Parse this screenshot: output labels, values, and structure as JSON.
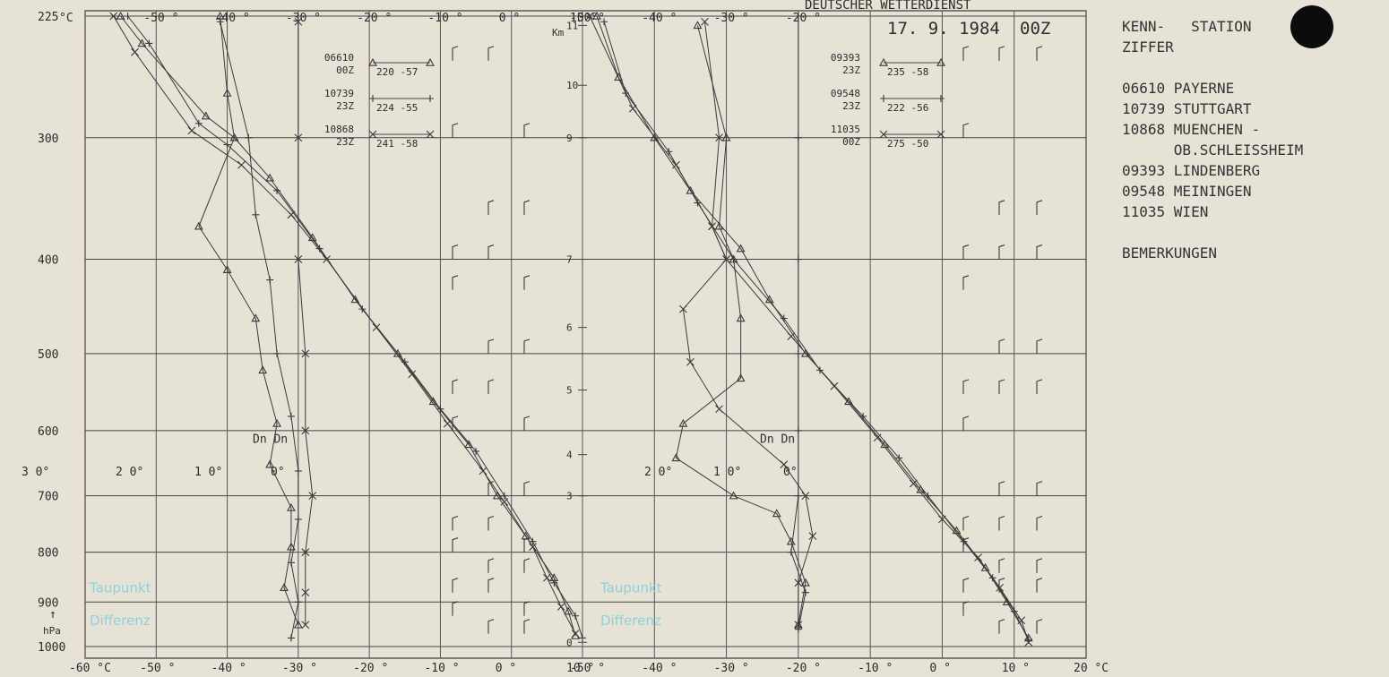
{
  "header": {
    "service": "DEUTSCHER WETTERDIENST",
    "date": "17. 9. 1984",
    "time": "00Z"
  },
  "side_panel": {
    "kenn_label": "KENN-   STATION",
    "ziffer_label": "ZIFFER",
    "stations": [
      {
        "id": "06610",
        "name": "PAYERNE"
      },
      {
        "id": "10739",
        "name": "STUTTGART"
      },
      {
        "id": "10868",
        "name": "MUENCHEN -"
      },
      {
        "id": "",
        "name": "OB.SCHLEISSHEIM"
      },
      {
        "id": "09393",
        "name": "LINDENBERG"
      },
      {
        "id": "09548",
        "name": "MEININGEN"
      },
      {
        "id": "11035",
        "name": "WIEN"
      }
    ],
    "remarks_label": "BEMERKUNGEN"
  },
  "chart_data": [
    {
      "type": "line",
      "panel": "left",
      "xlabel": "°C",
      "ylabel": "hPa",
      "xlim": [
        -60,
        10
      ],
      "x_ticks": [
        "-60 °C",
        "-50 °",
        "-40 °",
        "-30 °",
        "-20 °",
        "-10 °",
        "0 °",
        "10 °"
      ],
      "y_ticks": [
        "225",
        "300",
        "400",
        "500",
        "600",
        "700",
        "800",
        "900",
        "1000"
      ],
      "dew_diff_ticks": [
        "3 0°",
        "2 0°",
        "1 0°",
        "0°"
      ],
      "dew_diff_label": "Dn",
      "annotation": [
        "Taupunkt",
        "Differenz"
      ],
      "tropopause": [
        {
          "station": "06610",
          "time": "00Z",
          "pressure": 220,
          "temp": -57
        },
        {
          "station": "10739",
          "time": "23Z",
          "pressure": 224,
          "temp": -55
        },
        {
          "station": "10868",
          "time": "23Z",
          "pressure": 241,
          "temp": -58
        }
      ],
      "series": [
        {
          "marker": "triangle",
          "points": [
            [
              -55,
              225
            ],
            [
              -52,
              240
            ],
            [
              -43,
              285
            ],
            [
              -39,
              300
            ],
            [
              -34,
              330
            ],
            [
              -28,
              380
            ],
            [
              -22,
              440
            ],
            [
              -16,
              500
            ],
            [
              -11,
              560
            ],
            [
              -6,
              620
            ],
            [
              -2,
              700
            ],
            [
              2,
              770
            ],
            [
              6,
              850
            ],
            [
              8,
              920
            ],
            [
              9,
              975
            ]
          ]
        },
        {
          "marker": "plus",
          "points": [
            [
              -54,
              225
            ],
            [
              -51,
              240
            ],
            [
              -44,
              290
            ],
            [
              -40,
              305
            ],
            [
              -33,
              340
            ],
            [
              -27,
              390
            ],
            [
              -21,
              450
            ],
            [
              -15,
              510
            ],
            [
              -10,
              570
            ],
            [
              -5,
              630
            ],
            [
              -1,
              700
            ],
            [
              3,
              780
            ],
            [
              6,
              860
            ],
            [
              9,
              930
            ],
            [
              10,
              980
            ]
          ]
        },
        {
          "marker": "cross",
          "points": [
            [
              -56,
              225
            ],
            [
              -53,
              245
            ],
            [
              -45,
              295
            ],
            [
              -38,
              320
            ],
            [
              -31,
              360
            ],
            [
              -26,
              400
            ],
            [
              -19,
              470
            ],
            [
              -14,
              525
            ],
            [
              -9,
              590
            ],
            [
              -4,
              660
            ],
            [
              -1,
              710
            ],
            [
              3,
              790
            ],
            [
              5,
              850
            ],
            [
              7,
              910
            ],
            [
              9,
              970
            ]
          ]
        },
        {
          "marker": "triangle",
          "dewdiff": true,
          "points": [
            [
              -41,
              225
            ],
            [
              -40,
              270
            ],
            [
              -39,
              300
            ],
            [
              -44,
              370
            ],
            [
              -40,
              410
            ],
            [
              -36,
              460
            ],
            [
              -35,
              520
            ],
            [
              -33,
              590
            ],
            [
              -34,
              650
            ],
            [
              -31,
              720
            ],
            [
              -31,
              790
            ],
            [
              -32,
              870
            ],
            [
              -30,
              950
            ]
          ]
        },
        {
          "marker": "plus",
          "dewdiff": true,
          "points": [
            [
              -41,
              228
            ],
            [
              -37,
              300
            ],
            [
              -36,
              360
            ],
            [
              -34,
              420
            ],
            [
              -33,
              500
            ],
            [
              -31,
              580
            ],
            [
              -30,
              660
            ],
            [
              -30,
              740
            ],
            [
              -31,
              820
            ],
            [
              -30,
              900
            ],
            [
              -31,
              980
            ]
          ]
        },
        {
          "marker": "cross",
          "dewdiff": true,
          "points": [
            [
              -30,
              228
            ],
            [
              -30,
              300
            ],
            [
              -30,
              400
            ],
            [
              -29,
              500
            ],
            [
              -29,
              600
            ],
            [
              -28,
              700
            ],
            [
              -29,
              800
            ],
            [
              -29,
              880
            ],
            [
              -29,
              950
            ]
          ]
        }
      ]
    },
    {
      "type": "line",
      "panel": "right",
      "xlabel": "°C",
      "xlim": [
        -50,
        20
      ],
      "x_ticks": [
        "-50 °",
        "-40 °",
        "-30 °",
        "-20 °",
        "-10 °",
        "0 °",
        "10 °",
        "20 °C"
      ],
      "height_scale": {
        "label": "Km",
        "ticks": [
          "11",
          "10",
          "9",
          "7",
          "6",
          "5",
          "4",
          "3",
          "0"
        ]
      },
      "dew_diff_ticks": [
        "2 0°",
        "1 0°",
        "0°"
      ],
      "dew_diff_label": "Dn",
      "annotation": [
        "Taupunkt",
        "Differenz"
      ],
      "tropopause": [
        {
          "station": "09393",
          "time": "23Z",
          "pressure": 235,
          "temp": -58
        },
        {
          "station": "09548",
          "time": "23Z",
          "pressure": 222,
          "temp": -56
        },
        {
          "station": "11035",
          "time": "00Z",
          "pressure": 275,
          "temp": -50
        }
      ],
      "series": [
        {
          "marker": "triangle",
          "points": [
            [
              -48,
              225
            ],
            [
              -45,
              260
            ],
            [
              -40,
              300
            ],
            [
              -35,
              340
            ],
            [
              -28,
              390
            ],
            [
              -24,
              440
            ],
            [
              -19,
              500
            ],
            [
              -13,
              560
            ],
            [
              -8,
              620
            ],
            [
              -3,
              690
            ],
            [
              2,
              760
            ],
            [
              6,
              830
            ],
            [
              9,
              900
            ],
            [
              12,
              980
            ]
          ]
        },
        {
          "marker": "plus",
          "points": [
            [
              -47,
              228
            ],
            [
              -44,
              270
            ],
            [
              -38,
              310
            ],
            [
              -34,
              350
            ],
            [
              -29,
              400
            ],
            [
              -22,
              460
            ],
            [
              -17,
              520
            ],
            [
              -11,
              580
            ],
            [
              -6,
              640
            ],
            [
              -2,
              700
            ],
            [
              3,
              780
            ],
            [
              7,
              850
            ],
            [
              10,
              920
            ],
            [
              12,
              985
            ]
          ]
        },
        {
          "marker": "cross",
          "points": [
            [
              -49,
              225
            ],
            [
              -43,
              280
            ],
            [
              -37,
              320
            ],
            [
              -32,
              370
            ],
            [
              -30,
              400
            ],
            [
              -21,
              480
            ],
            [
              -15,
              540
            ],
            [
              -9,
              610
            ],
            [
              -4,
              680
            ],
            [
              0,
              740
            ],
            [
              5,
              810
            ],
            [
              8,
              870
            ],
            [
              11,
              940
            ],
            [
              12,
              990
            ]
          ]
        },
        {
          "marker": "triangle",
          "dewdiff": true,
          "points": [
            [
              -34,
              230
            ],
            [
              -30,
              300
            ],
            [
              -31,
              370
            ],
            [
              -29,
              400
            ],
            [
              -28,
              460
            ],
            [
              -28,
              530
            ],
            [
              -36,
              590
            ],
            [
              -37,
              640
            ],
            [
              -29,
              700
            ],
            [
              -23,
              730
            ],
            [
              -21,
              780
            ],
            [
              -19,
              860
            ],
            [
              -20,
              950
            ]
          ]
        },
        {
          "marker": "cross",
          "dewdiff": true,
          "points": [
            [
              -33,
              228
            ],
            [
              -31,
              300
            ],
            [
              -32,
              370
            ],
            [
              -30,
              400
            ],
            [
              -36,
              450
            ],
            [
              -35,
              510
            ],
            [
              -31,
              570
            ],
            [
              -22,
              650
            ],
            [
              -19,
              700
            ],
            [
              -18,
              770
            ],
            [
              -20,
              860
            ],
            [
              -20,
              950
            ]
          ]
        },
        {
          "marker": "plus",
          "dewdiff": true,
          "points": [
            [
              -20,
              225
            ],
            [
              -20,
              300
            ],
            [
              -20,
              400
            ],
            [
              -20,
              500
            ],
            [
              -20,
              600
            ],
            [
              -20,
              700
            ],
            [
              -21,
              800
            ],
            [
              -19,
              880
            ],
            [
              -20,
              960
            ]
          ]
        }
      ]
    }
  ]
}
